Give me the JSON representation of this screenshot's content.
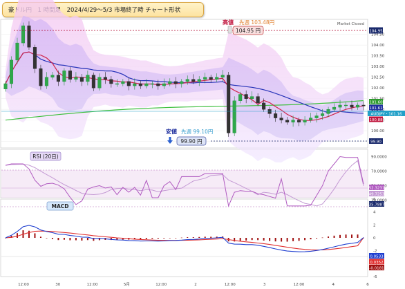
{
  "header": {
    "title": "豪ドル円　1 時間足　2024/4/29～5/3 市場終了時 チャート形状"
  },
  "annotations": {
    "high_label": "高値",
    "high_prev": "先週 103.48円",
    "high_value": "104.95 円",
    "low_label": "安値",
    "low_prev": "先週 99.10円",
    "low_value": "99.90 円",
    "market_status": "Market Closed"
  },
  "price_axis": {
    "ticks": [
      "104.50",
      "104.00",
      "103.50",
      "103.00",
      "102.50",
      "102.00",
      "101.50",
      "101.00",
      "100.50",
      "100.00",
      "99.50"
    ],
    "badges": {
      "high": {
        "text": "104.95",
        "color": "#1a2a6c"
      },
      "green_ma": {
        "text": "101.60",
        "color": "#2f9a2f"
      },
      "blue_ma": {
        "text": "101.61",
        "color": "#2230a0"
      },
      "current": {
        "text": "AUDJPY・101.16",
        "color": "#22a0c8"
      },
      "red_ma": {
        "text": "100.88",
        "color": "#c0143c"
      },
      "low": {
        "text": "99.90",
        "color": "#1a2a6c"
      }
    }
  },
  "rsi": {
    "label": "RSI (20日)",
    "ticks": [
      "90.0000",
      "70.0000",
      "50.0000",
      "30.0000"
    ],
    "value_badge": "52.3231",
    "signal_badge": "49.7253",
    "low_badge": "35.7887",
    "colors": {
      "rsi": "#b05ac0",
      "signal": "#c49ad4"
    }
  },
  "macd": {
    "label": "MACD",
    "ticks": [
      "6",
      "4",
      "2",
      "0",
      "-2",
      "-4",
      "-6"
    ],
    "badges": [
      "0.0533",
      "0.0352",
      "-0.0181"
    ],
    "colors": {
      "macd": "#1f3fd0",
      "signal": "#e03030",
      "hist": "#a01010"
    }
  },
  "time_axis": {
    "labels": [
      "12:00",
      "30",
      "12:00",
      "5月",
      "12:00",
      "2",
      "12:00",
      "3",
      "12:00",
      "4",
      "6"
    ]
  },
  "chart_data": [
    {
      "type": "candlestick",
      "title": "豪ドル円　1 時間足　2024/4/29～5/3 市場終了時 チャート形状",
      "ylim": [
        99.2,
        105.2
      ],
      "close": [
        102.2,
        103.3,
        104.1,
        104.9,
        103.9,
        102.9,
        102.1,
        102.5,
        102.6,
        102.3,
        102.8,
        102.4,
        102.5,
        102.3,
        102.6,
        102.0,
        102.5,
        102.4,
        102.2,
        102.2,
        102.3,
        102.1,
        102.2,
        102.1,
        102.2,
        102.2,
        102.1,
        102.2,
        102.3,
        102.2,
        102.3,
        102.4,
        102.3,
        102.4,
        102.5,
        102.4,
        102.5,
        102.6,
        99.9,
        101.4,
        101.7,
        101.5,
        101.6,
        101.3,
        101.0,
        100.8,
        100.6,
        100.5,
        100.4,
        100.5,
        100.4,
        100.5,
        100.6,
        100.7,
        100.8,
        101.0,
        101.1,
        101.2,
        101.2,
        101.1,
        101.2,
        101.16
      ],
      "ma_red": "red moving average",
      "ma_blue": "blue moving average",
      "ma_green": "green moving average",
      "high": 104.95,
      "low": 99.9,
      "last": 101.16
    },
    {
      "type": "line",
      "title": "RSI (20日)",
      "ylim": [
        20,
        100
      ],
      "rsi_last": 52.3231,
      "signal_last": 49.7253
    },
    {
      "type": "line",
      "title": "MACD",
      "ylim": [
        -6,
        6
      ],
      "macd_last": 0.0533,
      "signal_last": 0.0352,
      "hist_last": -0.0181
    }
  ]
}
